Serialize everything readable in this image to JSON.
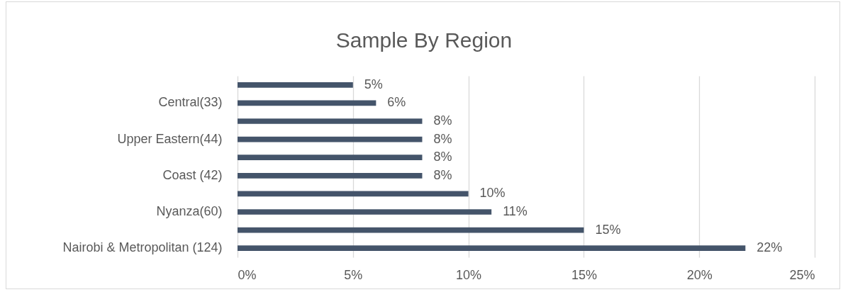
{
  "chart_data": {
    "type": "bar",
    "orientation": "horizontal",
    "title": "Sample By Region",
    "categories": [
      null,
      "Central(33)",
      null,
      "Upper Eastern(44)",
      null,
      "Coast (42)",
      null,
      "Nyanza(60)",
      null,
      "Nairobi & Metropolitan (124)"
    ],
    "values": [
      5,
      6,
      8,
      8,
      8,
      8,
      10,
      11,
      15,
      22
    ],
    "value_labels": [
      "5%",
      "6%",
      "8%",
      "8%",
      "8%",
      "8%",
      "10%",
      "11%",
      "15%",
      "22%"
    ],
    "color": "#44546a",
    "xlim": [
      0,
      25
    ],
    "xticks": [
      {
        "value": 0,
        "label": "0%"
      },
      {
        "value": 5,
        "label": "5%"
      },
      {
        "value": 10,
        "label": "10%"
      },
      {
        "value": 15,
        "label": "15%"
      },
      {
        "value": 20,
        "label": "20%"
      },
      {
        "value": 25,
        "label": "25%"
      }
    ],
    "grid": "x"
  }
}
